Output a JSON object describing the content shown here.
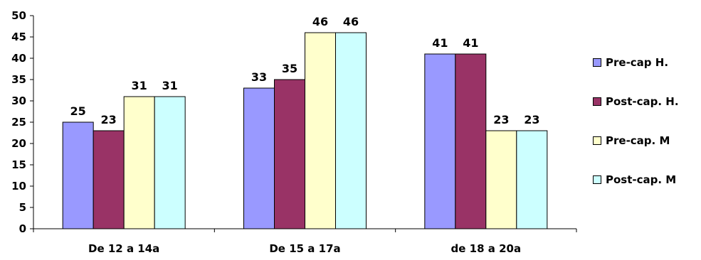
{
  "chart_data": {
    "type": "bar",
    "categories": [
      "De 12 a 14a",
      "De 15 a 17a",
      "de 18 a 20a"
    ],
    "series": [
      {
        "name": "Pre-cap H.",
        "values": [
          25,
          33,
          41
        ],
        "color": "#9999FF"
      },
      {
        "name": "Post-cap. H.",
        "values": [
          23,
          35,
          41
        ],
        "color": "#993366"
      },
      {
        "name": "Pre-cap. M",
        "values": [
          31,
          46,
          23
        ],
        "color": "#FFFFCC"
      },
      {
        "name": "Post-cap. M",
        "values": [
          31,
          46,
          23
        ],
        "color": "#CCFFFF"
      }
    ],
    "ylim": [
      0,
      50
    ],
    "yticks": [
      0,
      5,
      10,
      15,
      20,
      25,
      30,
      35,
      40,
      45,
      50
    ],
    "grid": false,
    "legend_position": "right",
    "data_labels": true
  }
}
